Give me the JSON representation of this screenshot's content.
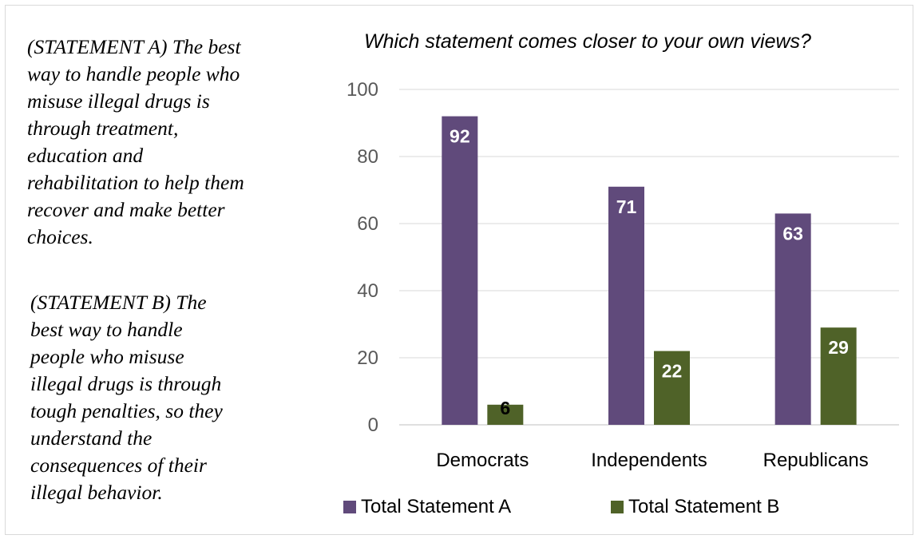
{
  "statements": {
    "a": "(STATEMENT A) The best\nway to handle people who\nmisuse illegal drugs is\nthrough treatment,\neducation and\nrehabilitation to help them\nrecover and make better\nchoices.",
    "b": "(STATEMENT B) The\nbest way to handle\npeople who misuse\nillegal drugs is through\ntough penalties, so they\nunderstand the\nconsequences of their\nillegal behavior."
  },
  "chart_data": {
    "type": "bar",
    "title": "Which statement comes closer to your own views?",
    "categories": [
      "Democrats",
      "Independents",
      "Republicans"
    ],
    "series": [
      {
        "name": "Total Statement A",
        "values": [
          92,
          71,
          63
        ],
        "color": "#604a7b"
      },
      {
        "name": "Total Statement B",
        "values": [
          6,
          22,
          29
        ],
        "color": "#4f6228"
      }
    ],
    "yticks": [
      0,
      20,
      40,
      60,
      80,
      100
    ],
    "ylim": [
      0,
      100
    ],
    "grid": true,
    "legend": "bottom",
    "xlabel": "",
    "ylabel": ""
  }
}
